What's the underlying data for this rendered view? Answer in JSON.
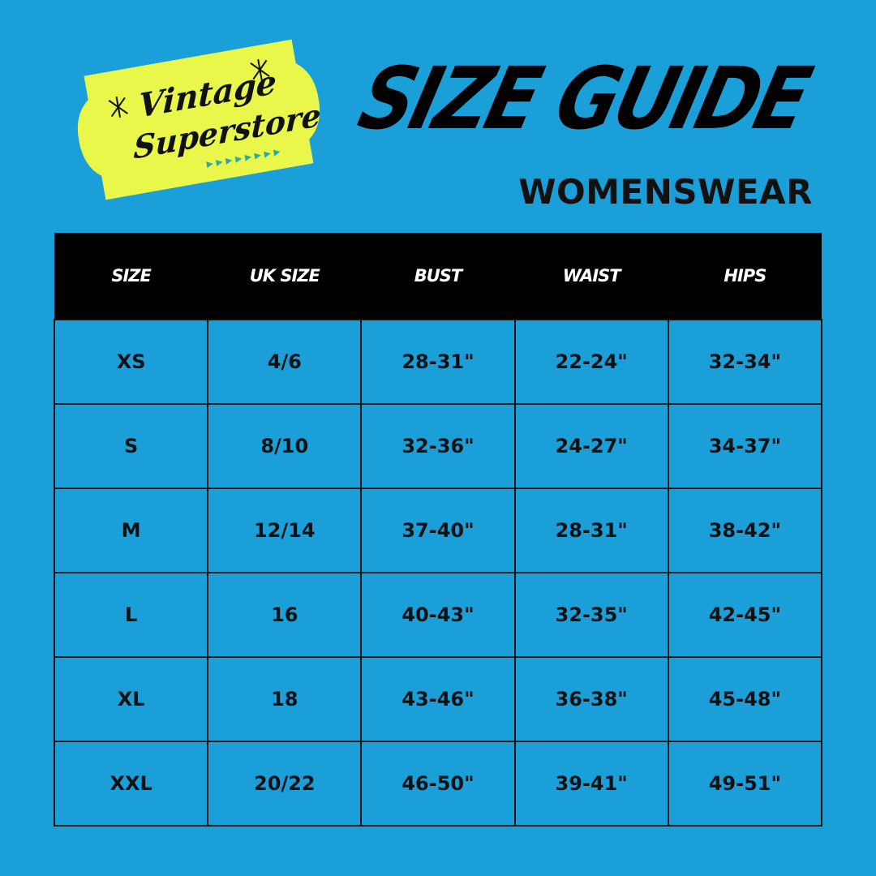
{
  "logo": {
    "line1": "Vintage",
    "line2": "Superstore",
    "color": "#e9f74a",
    "accent": "#2fa9a0"
  },
  "title": "SIZE GUIDE",
  "subtitle": "WOMENSWEAR",
  "table": {
    "headers": [
      "SIZE",
      "UK SIZE",
      "BUST",
      "WAIST",
      "HIPS"
    ],
    "rows": [
      [
        "XS",
        "4/6",
        "28-31\"",
        "22-24\"",
        "32-34\""
      ],
      [
        "S",
        "8/10",
        "32-36\"",
        "24-27\"",
        "34-37\""
      ],
      [
        "M",
        "12/14",
        "37-40\"",
        "28-31\"",
        "38-42\""
      ],
      [
        "L",
        "16",
        "40-43\"",
        "32-35\"",
        "42-45\""
      ],
      [
        "XL",
        "18",
        "43-46\"",
        "36-38\"",
        "45-48\""
      ],
      [
        "XXL",
        "20/22",
        "46-50\"",
        "39-41\"",
        "49-51\""
      ]
    ]
  },
  "colors": {
    "background": "#1b9fd9",
    "header": "#000000"
  }
}
